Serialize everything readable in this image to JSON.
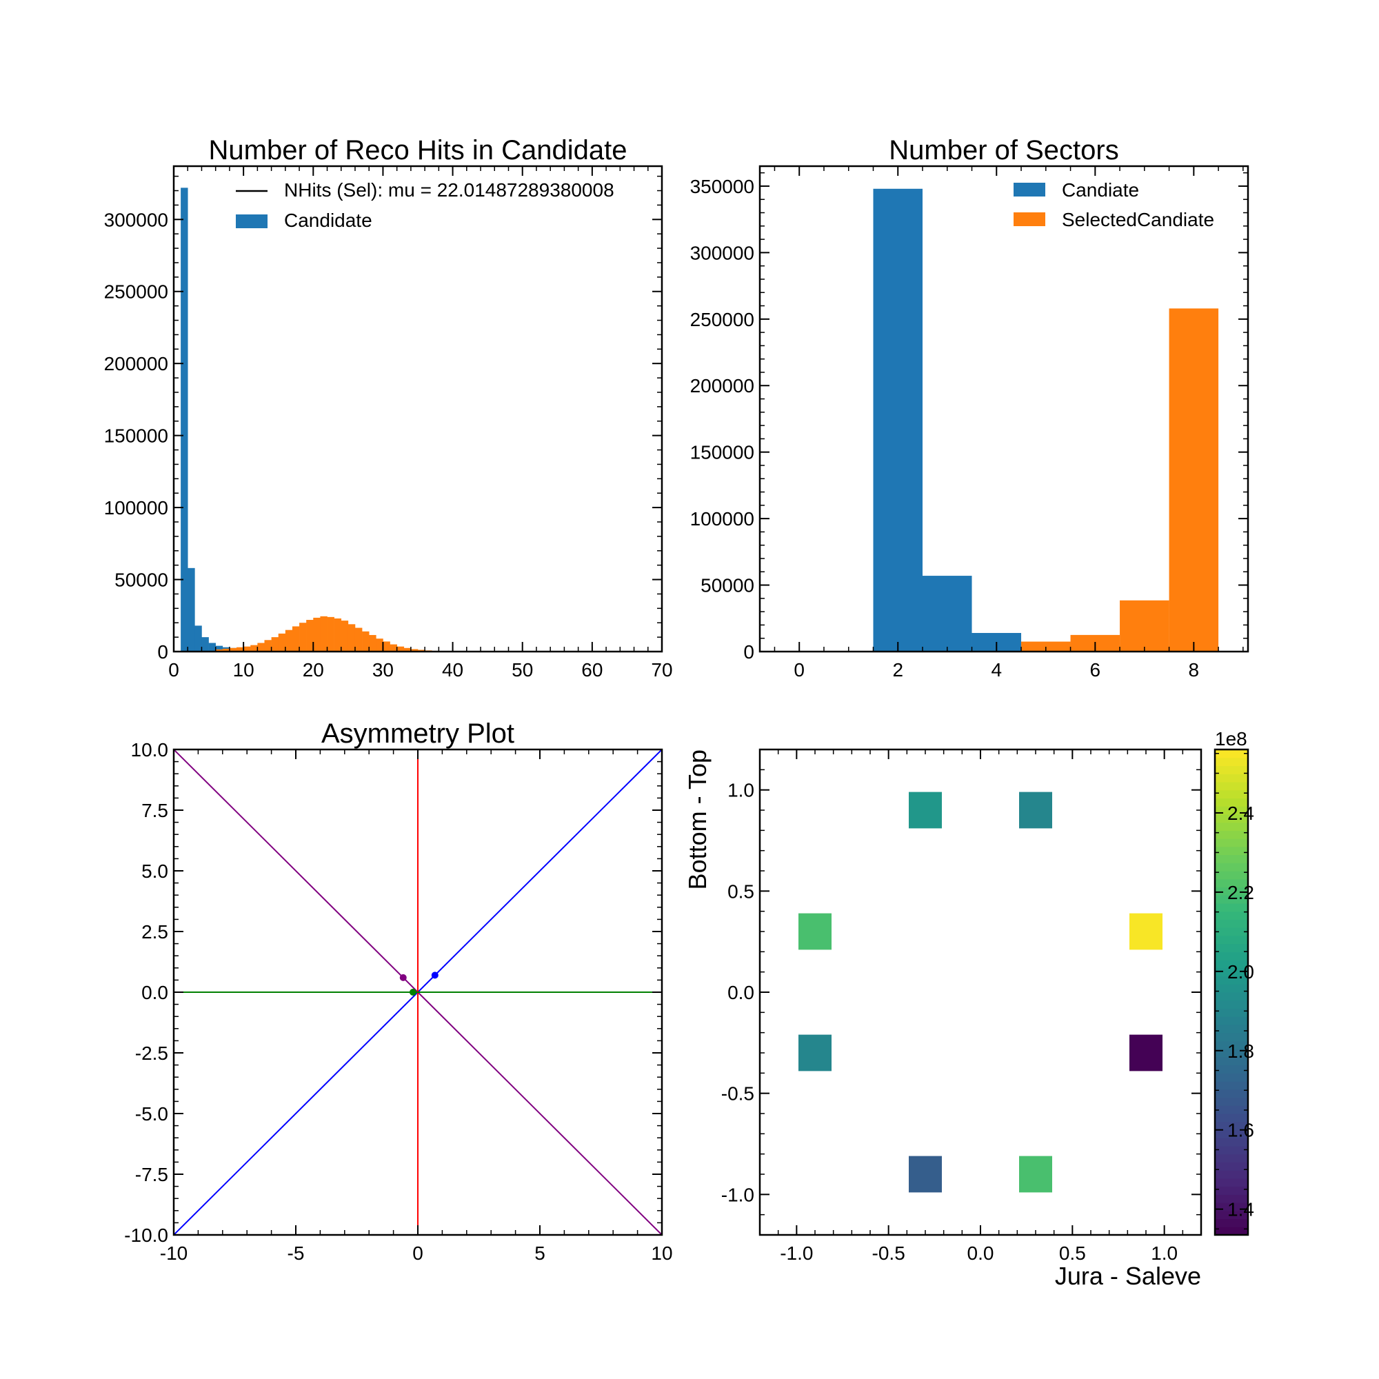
{
  "chart_data": [
    {
      "type": "bar",
      "title": "Number of Reco Hits in Candidate",
      "xlim": [
        0,
        70
      ],
      "ylim": [
        0,
        337000
      ],
      "xticks": [
        "0",
        "10",
        "20",
        "30",
        "40",
        "50",
        "60",
        "70"
      ],
      "yticks": [
        "0",
        "50000",
        "100000",
        "150000",
        "200000",
        "250000",
        "300000"
      ],
      "legend_position": "top-right",
      "legend": [
        {
          "label": "NHits (Sel): mu = 22.01487289380008",
          "kind": "line",
          "color": "#000000"
        },
        {
          "label": "Candidate",
          "kind": "patch",
          "color": "#1f77b4"
        }
      ],
      "series": [
        {
          "name": "Candidate",
          "color": "#1f77b4",
          "bin_width": 1,
          "x": [
            1,
            2,
            3,
            4,
            5,
            6,
            7,
            8
          ],
          "values": [
            322000,
            58000,
            18000,
            10000,
            6000,
            4000,
            3000,
            2500
          ]
        },
        {
          "name": "",
          "color": "#ff7f0e",
          "bin_width": 1,
          "x": [
            6,
            7,
            8,
            9,
            10,
            11,
            12,
            13,
            14,
            15,
            16,
            17,
            18,
            19,
            20,
            21,
            22,
            23,
            24,
            25,
            26,
            27,
            28,
            29,
            30,
            31,
            32,
            33,
            34,
            35,
            36,
            37,
            38
          ],
          "values": [
            1500,
            2000,
            2500,
            3000,
            3500,
            4500,
            6000,
            8000,
            10000,
            12500,
            15000,
            17500,
            20000,
            22000,
            23500,
            24500,
            24000,
            23000,
            21500,
            19000,
            16500,
            14000,
            11500,
            9000,
            7000,
            5000,
            3500,
            2500,
            1700,
            1200,
            800,
            500,
            300
          ]
        }
      ]
    },
    {
      "type": "bar",
      "title": "Number of Sectors",
      "xlim": [
        -0.8,
        9.1
      ],
      "ylim": [
        0,
        365000
      ],
      "xticks": [
        "0",
        "2",
        "4",
        "6",
        "8"
      ],
      "yticks": [
        "0",
        "50000",
        "100000",
        "150000",
        "200000",
        "250000",
        "300000",
        "350000"
      ],
      "legend_position": "top-right",
      "series": [
        {
          "name": "Candiate",
          "color": "#1f77b4",
          "x": [
            2,
            3,
            4
          ],
          "values": [
            348000,
            57000,
            14000
          ]
        },
        {
          "name": "SelectedCandiate",
          "color": "#ff7f0e",
          "x": [
            5,
            6,
            7,
            8
          ],
          "values": [
            7500,
            12500,
            38500,
            258000
          ]
        }
      ]
    },
    {
      "type": "line",
      "title": "Asymmetry Plot",
      "xlim": [
        -10,
        10
      ],
      "ylim": [
        -10,
        10
      ],
      "xticks": [
        "-10",
        "-5",
        "0",
        "5",
        "10"
      ],
      "yticks": [
        "-10.0",
        "-7.5",
        "-5.0",
        "-2.5",
        "0.0",
        "2.5",
        "5.0",
        "7.5",
        "10.0"
      ],
      "series": [
        {
          "color": "#0000ff",
          "x": [
            -10,
            10
          ],
          "y": [
            -10,
            10
          ]
        },
        {
          "color": "#800080",
          "x": [
            -10,
            10
          ],
          "y": [
            10,
            -10
          ]
        },
        {
          "color": "#ff0000",
          "x": [
            0,
            0
          ],
          "y": [
            -10,
            10
          ]
        },
        {
          "color": "#008000",
          "x": [
            -10,
            10
          ],
          "y": [
            0,
            0
          ]
        }
      ],
      "points": [
        {
          "color": "#800080",
          "x": -0.6,
          "y": 0.6
        },
        {
          "color": "#0000ff",
          "x": 0.7,
          "y": 0.7
        },
        {
          "color": "#008000",
          "x": -0.2,
          "y": 0.0
        }
      ]
    },
    {
      "type": "heatmap",
      "xlabel": "Jura - Saleve",
      "ylabel": "Bottom - Top",
      "xlim": [
        -1.2,
        1.2
      ],
      "ylim": [
        -1.2,
        1.2
      ],
      "xticks": [
        "-1.0",
        "-0.5",
        "0.0",
        "0.5",
        "1.0"
      ],
      "yticks": [
        "-1.0",
        "-0.5",
        "0.0",
        "0.5",
        "1.0"
      ],
      "cell_size": 0.2,
      "cells": [
        {
          "x": -0.3,
          "y": 0.9,
          "value": 1.98
        },
        {
          "x": 0.3,
          "y": 0.9,
          "value": 1.9
        },
        {
          "x": -0.9,
          "y": 0.3,
          "value": 2.2
        },
        {
          "x": 0.9,
          "y": 0.3,
          "value": 2.55
        },
        {
          "x": -0.9,
          "y": -0.3,
          "value": 1.9
        },
        {
          "x": 0.9,
          "y": -0.3,
          "value": 1.34
        },
        {
          "x": -0.3,
          "y": -0.9,
          "value": 1.7
        },
        {
          "x": 0.3,
          "y": -0.9,
          "value": 2.2
        }
      ],
      "colorbar": {
        "range": [
          1.335,
          2.56
        ],
        "ticks": [
          "1.4",
          "1.6",
          "1.8",
          "2.0",
          "2.2",
          "2.4"
        ],
        "exponent_label": "1e8",
        "colormap": "viridis"
      }
    }
  ]
}
